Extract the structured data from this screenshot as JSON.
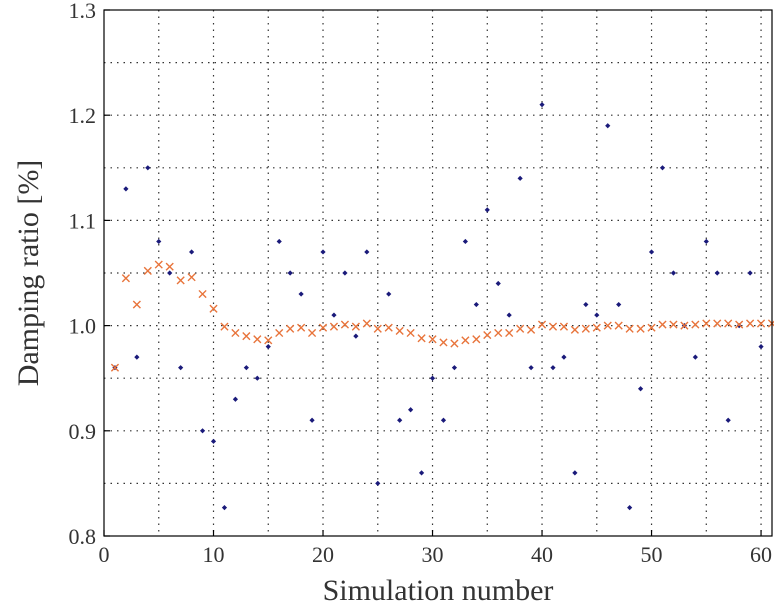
{
  "chart_data": {
    "type": "scatter",
    "title": "",
    "xlabel": "Simulation number",
    "ylabel": "Damping ratio [%]",
    "xlim": [
      0,
      61
    ],
    "ylim": [
      0.8,
      1.3
    ],
    "grid": true,
    "x_ticks": [
      0,
      10,
      20,
      30,
      40,
      50,
      60
    ],
    "x_tick_labels": [
      "0",
      "10",
      "20",
      "30",
      "40",
      "50",
      "60"
    ],
    "y_ticks": [
      0.8,
      0.9,
      1.0,
      1.1,
      1.2,
      1.3
    ],
    "y_tick_labels": [
      "0.8",
      "0.9",
      "1.0",
      "1.1",
      "1.2",
      "1.3"
    ],
    "series": [
      {
        "marker": "dot",
        "color": "#1a1a7a",
        "points": [
          [
            1,
            0.96
          ],
          [
            2,
            1.13
          ],
          [
            3,
            0.97
          ],
          [
            4,
            1.15
          ],
          [
            5,
            1.08
          ],
          [
            6,
            1.05
          ],
          [
            7,
            0.96
          ],
          [
            8,
            1.07
          ],
          [
            9,
            0.9
          ],
          [
            10,
            0.89
          ],
          [
            11,
            0.827
          ],
          [
            12,
            0.93
          ],
          [
            13,
            0.96
          ],
          [
            14,
            0.95
          ],
          [
            15,
            0.98
          ],
          [
            16,
            1.08
          ],
          [
            17,
            1.05
          ],
          [
            18,
            1.03
          ],
          [
            19,
            0.91
          ],
          [
            20,
            1.07
          ],
          [
            21,
            1.01
          ],
          [
            22,
            1.05
          ],
          [
            23,
            0.99
          ],
          [
            24,
            1.07
          ],
          [
            25,
            0.85
          ],
          [
            26,
            1.03
          ],
          [
            27,
            0.91
          ],
          [
            28,
            0.92
          ],
          [
            29,
            0.86
          ],
          [
            30,
            0.95
          ],
          [
            31,
            0.91
          ],
          [
            32,
            0.96
          ],
          [
            33,
            1.08
          ],
          [
            34,
            1.02
          ],
          [
            35,
            1.11
          ],
          [
            36,
            1.04
          ],
          [
            37,
            1.01
          ],
          [
            38,
            1.14
          ],
          [
            39,
            0.96
          ],
          [
            40,
            1.21
          ],
          [
            41,
            0.96
          ],
          [
            42,
            0.97
          ],
          [
            43,
            0.86
          ],
          [
            44,
            1.02
          ],
          [
            45,
            1.01
          ],
          [
            46,
            1.19
          ],
          [
            47,
            1.02
          ],
          [
            48,
            0.827
          ],
          [
            49,
            0.94
          ],
          [
            50,
            1.07
          ],
          [
            51,
            1.15
          ],
          [
            52,
            1.05
          ],
          [
            53,
            1.0
          ],
          [
            54,
            0.97
          ],
          [
            55,
            1.08
          ],
          [
            56,
            1.05
          ],
          [
            57,
            0.91
          ],
          [
            58,
            1.0
          ],
          [
            59,
            1.05
          ],
          [
            60,
            0.98
          ]
        ]
      },
      {
        "marker": "x",
        "color": "#e8743b",
        "points": [
          [
            1,
            0.96
          ],
          [
            2,
            1.045
          ],
          [
            3,
            1.02
          ],
          [
            4,
            1.052
          ],
          [
            5,
            1.058
          ],
          [
            6,
            1.056
          ],
          [
            7,
            1.043
          ],
          [
            8,
            1.046
          ],
          [
            9,
            1.03
          ],
          [
            10,
            1.016
          ],
          [
            11,
            0.999
          ],
          [
            12,
            0.993
          ],
          [
            13,
            0.99
          ],
          [
            14,
            0.987
          ],
          [
            15,
            0.986
          ],
          [
            16,
            0.993
          ],
          [
            17,
            0.997
          ],
          [
            18,
            0.998
          ],
          [
            19,
            0.993
          ],
          [
            20,
            0.998
          ],
          [
            21,
            0.999
          ],
          [
            22,
            1.001
          ],
          [
            23,
            0.999
          ],
          [
            24,
            1.002
          ],
          [
            25,
            0.997
          ],
          [
            26,
            0.998
          ],
          [
            27,
            0.995
          ],
          [
            28,
            0.993
          ],
          [
            29,
            0.988
          ],
          [
            30,
            0.987
          ],
          [
            31,
            0.984
          ],
          [
            32,
            0.983
          ],
          [
            33,
            0.986
          ],
          [
            34,
            0.987
          ],
          [
            35,
            0.991
          ],
          [
            36,
            0.993
          ],
          [
            37,
            0.993
          ],
          [
            38,
            0.997
          ],
          [
            39,
            0.996
          ],
          [
            40,
            1.001
          ],
          [
            41,
            0.999
          ],
          [
            42,
            0.999
          ],
          [
            43,
            0.996
          ],
          [
            44,
            0.997
          ],
          [
            45,
            0.998
          ],
          [
            46,
            1.0
          ],
          [
            47,
            1.0
          ],
          [
            48,
            0.997
          ],
          [
            49,
            0.997
          ],
          [
            50,
            0.998
          ],
          [
            51,
            1.001
          ],
          [
            52,
            1.001
          ],
          [
            53,
            1.0
          ],
          [
            54,
            1.001
          ],
          [
            55,
            1.002
          ],
          [
            56,
            1.002
          ],
          [
            57,
            1.002
          ],
          [
            58,
            1.001
          ],
          [
            59,
            1.002
          ],
          [
            60,
            1.002
          ],
          [
            61,
            1.002
          ]
        ]
      }
    ]
  }
}
